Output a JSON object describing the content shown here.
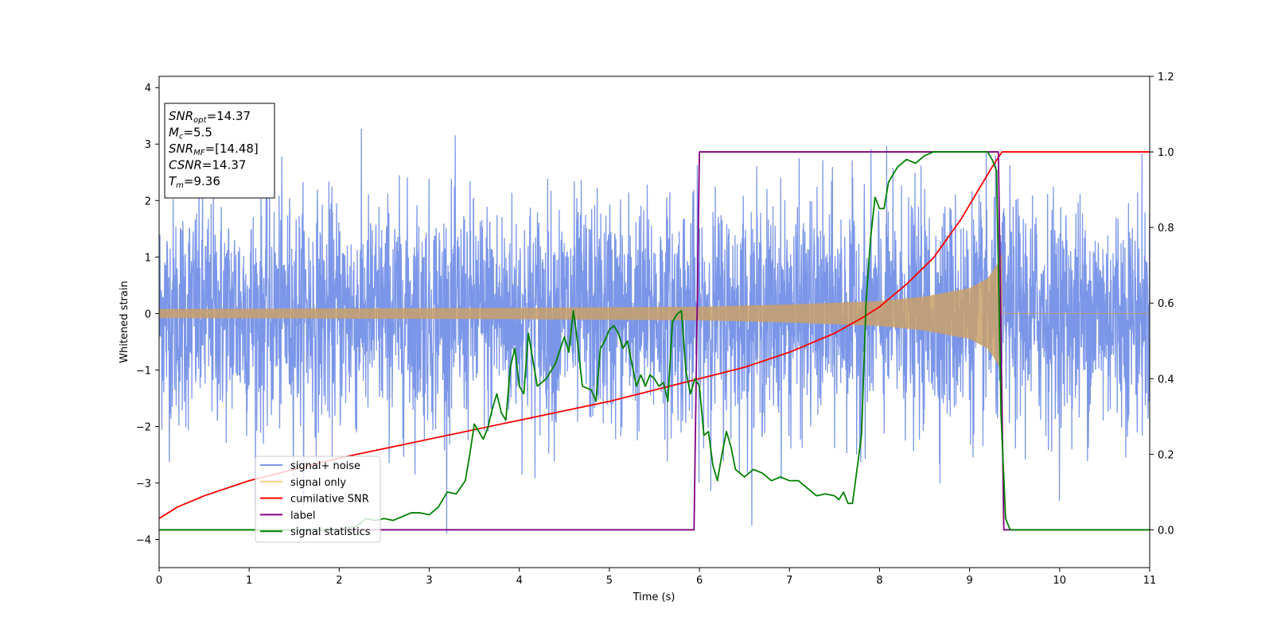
{
  "chart_data": {
    "type": "line",
    "title": "",
    "xlabel": "Time (s)",
    "ylabel": "Whitened strain",
    "y2label": "",
    "xlim": [
      0,
      11
    ],
    "ylim": [
      -4.5,
      4.2
    ],
    "y2lim": [
      -0.1,
      1.2
    ],
    "x_ticks": [
      "0",
      "1",
      "2",
      "3",
      "4",
      "5",
      "6",
      "7",
      "8",
      "9",
      "10",
      "11"
    ],
    "y_ticks": [
      "−4",
      "−3",
      "−2",
      "−1",
      "0",
      "1",
      "2",
      "3",
      "4"
    ],
    "y2_ticks": [
      "0.0",
      "0.2",
      "0.4",
      "0.6",
      "0.8",
      "1.0",
      "1.2"
    ],
    "grid": false,
    "legend_position": "lower-left",
    "info_box": {
      "lines": [
        {
          "sym": "SNR",
          "sub": "opt",
          "val": "=14.37"
        },
        {
          "sym": "M",
          "sub": "c",
          "val": "=5.5"
        },
        {
          "sym": "SNR",
          "sub": "MF",
          "val": "=[14.48]"
        },
        {
          "sym": "CSNR",
          "sub": "",
          "val": "=14.37"
        },
        {
          "sym": "T",
          "sub": "m",
          "val": "=9.36"
        }
      ]
    },
    "series": [
      {
        "name": "signal+ noise",
        "axis": "left",
        "color": "#7b96e8",
        "noise_std": 1.0,
        "x_range": [
          0,
          11
        ],
        "signal_added": true
      },
      {
        "name": "signal only",
        "axis": "left",
        "color": "#ffcc80",
        "envelope_x": [
          0,
          2,
          4,
          6,
          7,
          8,
          8.5,
          9.0,
          9.2,
          9.3,
          9.36
        ],
        "envelope_y": [
          0.08,
          0.09,
          0.1,
          0.12,
          0.16,
          0.22,
          0.3,
          0.45,
          0.62,
          0.85,
          1.05
        ],
        "merger_time": 9.36
      },
      {
        "name": "cumilative SNR",
        "axis": "right",
        "color": "#ff0000",
        "x": [
          0,
          0.2,
          0.5,
          1,
          2,
          3,
          4,
          5,
          5.5,
          6,
          6.5,
          7,
          7.5,
          7.8,
          8,
          8.3,
          8.6,
          8.9,
          9.1,
          9.25,
          9.36,
          9.4,
          11
        ],
        "y": [
          0.03,
          0.06,
          0.09,
          0.13,
          0.19,
          0.24,
          0.29,
          0.34,
          0.37,
          0.4,
          0.43,
          0.47,
          0.52,
          0.56,
          0.59,
          0.65,
          0.72,
          0.82,
          0.9,
          0.96,
          1.0,
          1.0,
          1.0
        ]
      },
      {
        "name": "label",
        "axis": "right",
        "color": "#800080",
        "x": [
          0,
          5.94,
          6.0,
          9.32,
          9.38,
          11
        ],
        "y": [
          0.0,
          0.0,
          1.0,
          1.0,
          0.0,
          0.0
        ]
      },
      {
        "name": "signal statistics",
        "axis": "right",
        "color": "#008000",
        "x": [
          0,
          0.5,
          1,
          1.5,
          2,
          2.2,
          2.3,
          2.4,
          2.5,
          2.6,
          2.7,
          2.8,
          2.9,
          3.0,
          3.1,
          3.2,
          3.3,
          3.4,
          3.45,
          3.5,
          3.6,
          3.65,
          3.7,
          3.75,
          3.8,
          3.85,
          3.9,
          3.95,
          4.0,
          4.05,
          4.1,
          4.15,
          4.2,
          4.3,
          4.4,
          4.5,
          4.55,
          4.6,
          4.65,
          4.7,
          4.8,
          4.85,
          4.9,
          4.95,
          5.0,
          5.05,
          5.1,
          5.15,
          5.2,
          5.3,
          5.35,
          5.4,
          5.45,
          5.5,
          5.55,
          5.6,
          5.65,
          5.7,
          5.75,
          5.8,
          5.85,
          5.9,
          5.95,
          6.0,
          6.05,
          6.1,
          6.15,
          6.2,
          6.25,
          6.3,
          6.35,
          6.4,
          6.5,
          6.6,
          6.7,
          6.8,
          6.9,
          7.0,
          7.1,
          7.2,
          7.3,
          7.4,
          7.5,
          7.55,
          7.6,
          7.65,
          7.7,
          7.8,
          7.85,
          7.9,
          7.95,
          8.0,
          8.05,
          8.1,
          8.2,
          8.3,
          8.4,
          8.5,
          8.6,
          8.7,
          8.8,
          8.9,
          9.0,
          9.1,
          9.2,
          9.25,
          9.3,
          9.35,
          9.4,
          9.45,
          9.5,
          9.6,
          9.8,
          10,
          11
        ],
        "y": [
          0.0,
          0.0,
          0.0,
          0.0,
          0.0,
          0.01,
          0.03,
          0.025,
          0.03,
          0.025,
          0.035,
          0.045,
          0.045,
          0.04,
          0.06,
          0.1,
          0.095,
          0.13,
          0.2,
          0.28,
          0.24,
          0.27,
          0.32,
          0.36,
          0.31,
          0.29,
          0.43,
          0.48,
          0.38,
          0.36,
          0.52,
          0.45,
          0.38,
          0.4,
          0.44,
          0.51,
          0.47,
          0.58,
          0.49,
          0.38,
          0.37,
          0.34,
          0.48,
          0.5,
          0.53,
          0.54,
          0.52,
          0.48,
          0.5,
          0.38,
          0.41,
          0.38,
          0.41,
          0.4,
          0.38,
          0.39,
          0.34,
          0.55,
          0.57,
          0.58,
          0.42,
          0.36,
          0.4,
          0.38,
          0.25,
          0.26,
          0.17,
          0.13,
          0.2,
          0.26,
          0.22,
          0.16,
          0.14,
          0.16,
          0.15,
          0.13,
          0.14,
          0.13,
          0.13,
          0.11,
          0.09,
          0.095,
          0.09,
          0.08,
          0.1,
          0.07,
          0.07,
          0.25,
          0.6,
          0.77,
          0.88,
          0.85,
          0.85,
          0.92,
          0.96,
          0.98,
          0.97,
          0.99,
          1.0,
          1.0,
          1.0,
          1.0,
          1.0,
          1.0,
          1.0,
          0.98,
          0.95,
          0.3,
          0.03,
          0.0,
          0.0,
          0.0,
          0.0,
          0.0,
          0.0
        ]
      }
    ]
  }
}
